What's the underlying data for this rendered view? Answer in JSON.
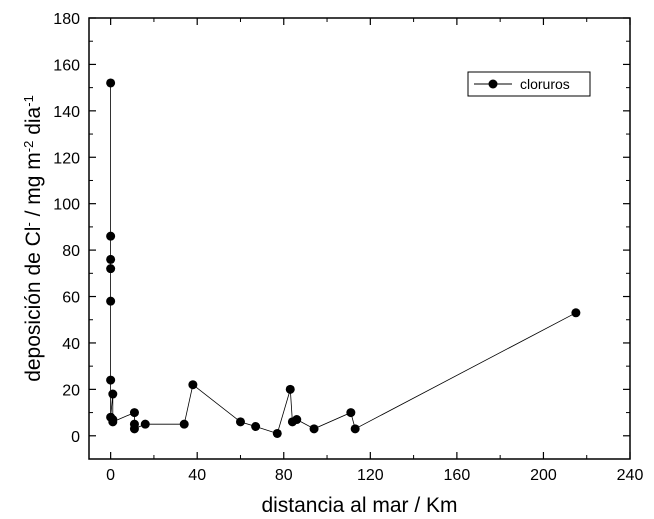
{
  "chart_data": {
    "type": "scatter",
    "title": "",
    "xlabel": "distancia al mar / Km",
    "ylabel": {
      "part1": "deposición de Cl",
      "sup1": "-",
      "part2": " / mg m",
      "sup2": "-2",
      "part3": " dia",
      "sup3": "-1"
    },
    "xlim": [
      -10,
      240
    ],
    "ylim": [
      -10,
      180
    ],
    "x_ticks": [
      0,
      40,
      80,
      120,
      160,
      200,
      240
    ],
    "y_ticks": [
      0,
      20,
      40,
      60,
      80,
      100,
      120,
      140,
      160,
      180
    ],
    "grid": false,
    "legend_position": "top-right",
    "series": [
      {
        "name": "cloruros",
        "line": true,
        "marker": "filled-circle",
        "color": "#000000",
        "points": [
          {
            "x": 0,
            "y": 152
          },
          {
            "x": 0,
            "y": 86
          },
          {
            "x": 0,
            "y": 76
          },
          {
            "x": 0,
            "y": 72
          },
          {
            "x": 0,
            "y": 58
          },
          {
            "x": 0,
            "y": 24
          },
          {
            "x": 0,
            "y": 8
          },
          {
            "x": 1,
            "y": 18
          },
          {
            "x": 1,
            "y": 7
          },
          {
            "x": 1,
            "y": 6
          },
          {
            "x": 11,
            "y": 10
          },
          {
            "x": 11,
            "y": 5
          },
          {
            "x": 11,
            "y": 3
          },
          {
            "x": 16,
            "y": 5
          },
          {
            "x": 34,
            "y": 5
          },
          {
            "x": 38,
            "y": 22
          },
          {
            "x": 60,
            "y": 6
          },
          {
            "x": 67,
            "y": 4
          },
          {
            "x": 77,
            "y": 1
          },
          {
            "x": 83,
            "y": 20
          },
          {
            "x": 84,
            "y": 6
          },
          {
            "x": 86,
            "y": 7
          },
          {
            "x": 94,
            "y": 3
          },
          {
            "x": 111,
            "y": 10
          },
          {
            "x": 113,
            "y": 3
          },
          {
            "x": 215,
            "y": 53
          }
        ]
      }
    ]
  }
}
